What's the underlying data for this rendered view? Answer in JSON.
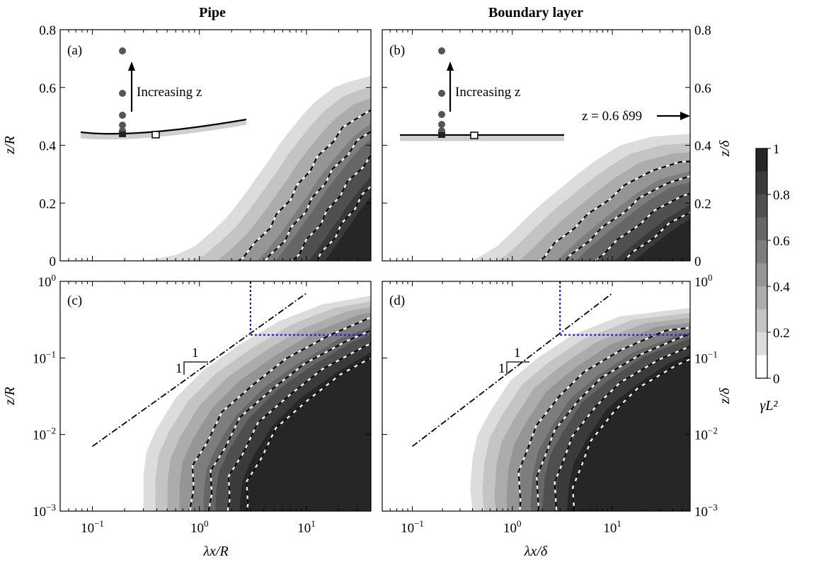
{
  "chart_data": [
    {
      "type": "heatmap",
      "panel_label": "(a)",
      "title": "Pipe",
      "xscale": "log",
      "yscale": "linear",
      "xlim": [
        0.05,
        40
      ],
      "ylim": [
        0,
        0.8
      ],
      "ylabel": "z/R",
      "yticks": [
        "0",
        "0.2",
        "0.4",
        "0.6",
        "0.8"
      ],
      "front_z": [
        0.64,
        0.62,
        0.6,
        0.55,
        0.5,
        0.45,
        0.4,
        0.35,
        0.3,
        0.25,
        0.2,
        0.15,
        0.1,
        0.05,
        0.02,
        0.0
      ],
      "front_lx": [
        40,
        25,
        18,
        12,
        9,
        7,
        5.5,
        4.5,
        3.6,
        2.9,
        2.3,
        1.8,
        1.3,
        0.9,
        0.6,
        0.3
      ],
      "annotation": "Increasing z"
    },
    {
      "type": "heatmap",
      "panel_label": "(b)",
      "title": "Boundary layer",
      "xscale": "log",
      "yscale": "linear",
      "xlim": [
        0.05,
        60
      ],
      "ylim": [
        0,
        0.8
      ],
      "ylabel": "z/δ",
      "yticks": [
        "0",
        "0.2",
        "0.4",
        "0.6",
        "0.8"
      ],
      "front_z": [
        0.44,
        0.43,
        0.4,
        0.35,
        0.3,
        0.25,
        0.2,
        0.15,
        0.1,
        0.05,
        0.02,
        0.0
      ],
      "front_lx": [
        60,
        25,
        12,
        7,
        4.5,
        3,
        2,
        1.4,
        1.0,
        0.7,
        0.5,
        0.4
      ],
      "annotation": "Increasing z",
      "reference": "z = 0.6 δ99"
    },
    {
      "type": "heatmap",
      "panel_label": "(c)",
      "xscale": "log",
      "yscale": "log",
      "xlim": [
        0.05,
        40
      ],
      "ylim": [
        0.001,
        1
      ],
      "xlabel": "λx/R",
      "ylabel": "z/R",
      "xticks": [
        "10−1",
        "100",
        "101"
      ],
      "yticks": [
        "10−3",
        "10−2",
        "10−1",
        "100"
      ],
      "front_z": [
        0.65,
        0.5,
        0.3,
        0.15,
        0.07,
        0.03,
        0.012,
        0.006,
        0.003,
        0.0015,
        0.001
      ],
      "front_lx": [
        40,
        14,
        5.5,
        2.4,
        1.1,
        0.6,
        0.4,
        0.32,
        0.3,
        0.3,
        0.3
      ],
      "slope_line": {
        "x": [
          0.1,
          10
        ],
        "y": [
          0.007,
          0.7
        ],
        "label_run": "1",
        "label_rise": "1"
      },
      "cutoff": {
        "lx": 3,
        "z": 0.2
      }
    },
    {
      "type": "heatmap",
      "panel_label": "(d)",
      "xscale": "log",
      "yscale": "log",
      "xlim": [
        0.05,
        60
      ],
      "ylim": [
        0.001,
        1
      ],
      "xlabel": "λx/δ",
      "ylabel": "z/δ",
      "xticks": [
        "10−1",
        "100",
        "101"
      ],
      "yticks": [
        "10−3",
        "10−2",
        "10−1",
        "100"
      ],
      "front_z": [
        0.45,
        0.35,
        0.2,
        0.1,
        0.05,
        0.02,
        0.01,
        0.005,
        0.002,
        0.001
      ],
      "front_lx": [
        60,
        12,
        4,
        1.8,
        0.95,
        0.6,
        0.45,
        0.4,
        0.38,
        0.4
      ],
      "slope_line": {
        "x": [
          0.1,
          10
        ],
        "y": [
          0.007,
          0.7
        ],
        "label_run": "1",
        "label_rise": "1"
      },
      "cutoff": {
        "lx": 3,
        "z": 0.2
      }
    }
  ],
  "colorbar": {
    "label": "γL²",
    "ticks": [
      "0",
      "0.2",
      "0.4",
      "0.6",
      "0.8",
      "1"
    ],
    "levels": [
      0,
      0.1,
      0.2,
      0.3,
      0.4,
      0.5,
      0.6,
      0.7,
      0.8,
      0.9,
      1
    ],
    "colors": [
      "#ffffff",
      "#dcdcdc",
      "#c4c4c4",
      "#acacac",
      "#959595",
      "#7d7d7d",
      "#666666",
      "#4f4f4f",
      "#3a3a3a",
      "#262626"
    ]
  }
}
